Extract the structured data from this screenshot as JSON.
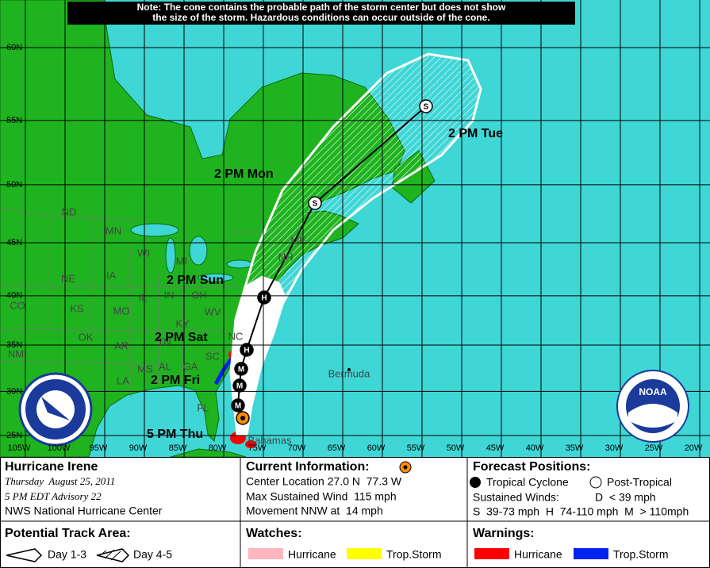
{
  "note": [
    "Note: The cone contains the probable path of the storm center but does not show",
    "the size of the storm. Hazardous conditions can occur outside of the cone."
  ],
  "map": {
    "longitude_labels": [
      "105W",
      "100W",
      "95W",
      "90W",
      "85W",
      "80W",
      "75W",
      "70W",
      "65W",
      "60W",
      "55W",
      "50W",
      "45W",
      "40W",
      "35W",
      "30W",
      "25W",
      "20W"
    ],
    "latitude_labels": [
      "60N",
      "55N",
      "50N",
      "45N",
      "40N",
      "35N",
      "30N",
      "25N"
    ],
    "forecast_times": [
      "2 PM Tue",
      "2 PM Mon",
      "2 PM Sun",
      "2 PM Sat",
      "2 PM Fri",
      "5 PM Thu"
    ],
    "track_markers": [
      "S",
      "S",
      "H",
      "H",
      "M",
      "M",
      "M"
    ],
    "state_labels": [
      "ND",
      "MN",
      "WI",
      "MI",
      "NE",
      "IA",
      "IL",
      "IN",
      "OH",
      "CO",
      "KS",
      "MO",
      "KY",
      "WV",
      "OK",
      "AR",
      "TN",
      "NC",
      "SC",
      "MS",
      "AL",
      "GA",
      "LA",
      "FL",
      "NM",
      "ME",
      "NH"
    ],
    "places": [
      "Bermuda",
      "Bahamas"
    ],
    "logo": "NOAA"
  },
  "storm": {
    "name": "Hurricane Irene",
    "date": "Thursday  August 25, 2011",
    "advisory": "5 PM EDT Advisory 22",
    "center": "NWS National Hurricane Center"
  },
  "current_information": {
    "title": "Current Information:",
    "location": "Center Location 27.0 N  77.3 W",
    "wind": "Max Sustained Wind  115 mph",
    "movement": "Movement NNW at  14 mph"
  },
  "forecast_positions": {
    "title": "Forecast Positions:",
    "tropical": "Tropical Cyclone",
    "post_tropical": "Post-Tropical",
    "winds_title": "Sustained Winds:",
    "depression": "D  < 39 mph",
    "scale": "S  39-73 mph  H  74-110 mph  M  > 110mph"
  },
  "potential_track_area": {
    "title": "Potential Track Area:",
    "day_1_3": "Day 1-3",
    "day_4_5": "Day 4-5"
  },
  "watches": {
    "title": "Watches:",
    "hurricane": "Hurricane",
    "tropical_storm": "Trop.Storm"
  },
  "warnings": {
    "title": "Warnings:",
    "hurricane": "Hurricane",
    "tropical_storm": "Trop.Storm"
  }
}
